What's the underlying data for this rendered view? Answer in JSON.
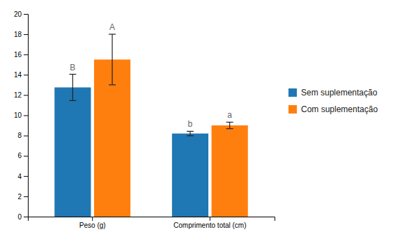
{
  "chart_data": {
    "type": "bar",
    "categories": [
      "Peso (g)",
      "Comprimento total (cm)"
    ],
    "series": [
      {
        "name": "Sem suplementação",
        "values": [
          12.75,
          8.2
        ],
        "errors": [
          1.3,
          0.22
        ],
        "annotations": [
          "B",
          "b"
        ]
      },
      {
        "name": "Com suplementação",
        "values": [
          15.5,
          9.0
        ],
        "errors": [
          2.5,
          0.32
        ],
        "annotations": [
          "A",
          "a"
        ]
      }
    ],
    "ylim": [
      0,
      20
    ],
    "yticks": [
      0,
      2,
      4,
      6,
      8,
      10,
      12,
      14,
      16,
      18,
      20
    ],
    "legend": "right"
  }
}
